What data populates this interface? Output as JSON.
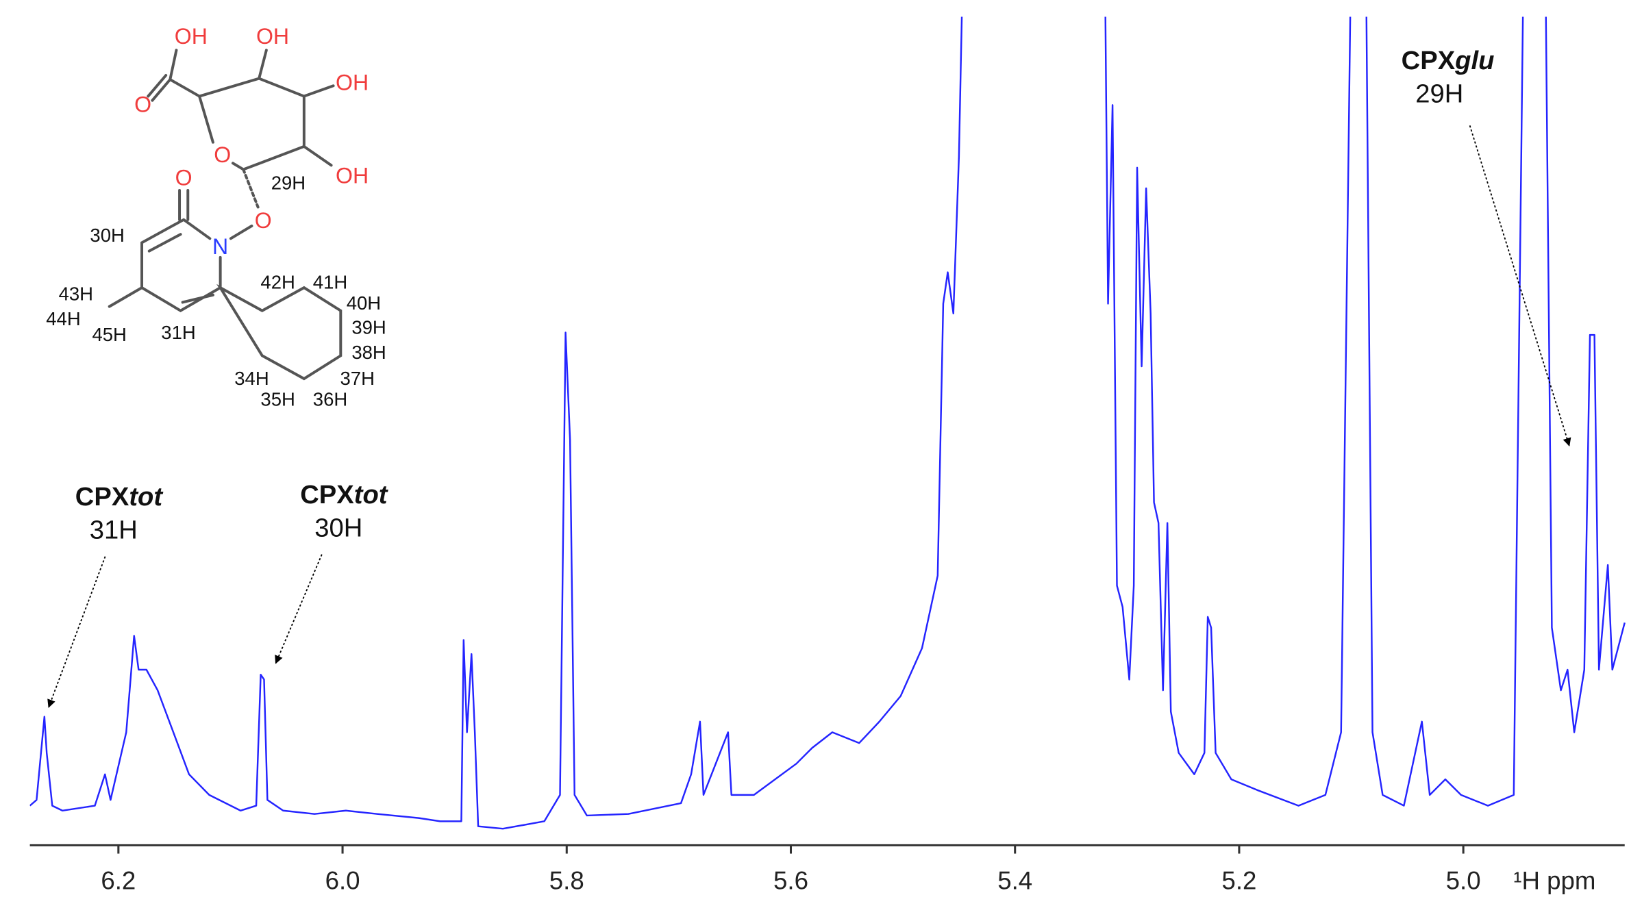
{
  "chart_data": {
    "type": "line",
    "x_label": "¹H ppm",
    "xlim": [
      6.279,
      4.856
    ],
    "xticks": [
      6.2,
      {
        "value": 6,
        "label": "6.0"
      },
      5.8,
      5.6,
      5.4,
      5.2,
      {
        "value": 5,
        "label": "5.0"
      }
    ],
    "ylim": [
      0,
      100
    ],
    "color": "#2424ff",
    "x": [
      6.279,
      6.273,
      6.266,
      6.264,
      6.259,
      6.25,
      6.221,
      6.212,
      6.207,
      6.193,
      6.186,
      6.182,
      6.175,
      6.165,
      6.151,
      6.137,
      6.119,
      6.091,
      6.077,
      6.073,
      6.07,
      6.067,
      6.053,
      6.025,
      5.997,
      5.969,
      5.932,
      5.913,
      5.894,
      5.892,
      5.889,
      5.885,
      5.882,
      5.879,
      5.857,
      5.82,
      5.806,
      5.801,
      5.797,
      5.793,
      5.782,
      5.745,
      5.698,
      5.689,
      5.681,
      5.678,
      5.656,
      5.653,
      5.633,
      5.595,
      5.581,
      5.563,
      5.539,
      5.521,
      5.502,
      5.483,
      5.469,
      5.464,
      5.46,
      5.455,
      5.45,
      5.446,
      5.32,
      5.317,
      5.313,
      5.309,
      5.304,
      5.298,
      5.294,
      5.291,
      5.287,
      5.283,
      5.279,
      5.276,
      5.272,
      5.268,
      5.264,
      5.261,
      5.254,
      5.24,
      5.231,
      5.228,
      5.225,
      5.221,
      5.207,
      5.184,
      5.147,
      5.123,
      5.109,
      5.1,
      5.087,
      5.081,
      5.072,
      5.053,
      5.037,
      5.03,
      5.016,
      5.002,
      4.978,
      4.955,
      4.946,
      4.927,
      4.921,
      4.913,
      4.907,
      4.901,
      4.892,
      4.887,
      4.883,
      4.879,
      4.871,
      4.867,
      4.856
    ],
    "values": [
      4.8,
      5.5,
      15.6,
      11.2,
      4.8,
      4.2,
      4.8,
      8.6,
      5.5,
      13.7,
      25.4,
      21.3,
      21.3,
      18.8,
      13.7,
      8.6,
      6.1,
      4.2,
      4.8,
      20.7,
      20.1,
      5.5,
      4.2,
      3.8,
      4.2,
      3.8,
      3.3,
      2.9,
      2.9,
      24.9,
      13.7,
      23.2,
      13.7,
      2.3,
      2.0,
      2.9,
      6.1,
      62.2,
      49.2,
      6.1,
      3.6,
      3.8,
      5.1,
      8.6,
      15.0,
      6.1,
      13.7,
      6.1,
      6.1,
      9.9,
      11.8,
      13.7,
      12.4,
      15.0,
      18.1,
      23.9,
      32.7,
      65.7,
      69.5,
      64.5,
      83.5,
      110,
      110,
      65.7,
      89.8,
      31.5,
      28.9,
      20.1,
      31.5,
      82.2,
      58.1,
      79.7,
      64.5,
      41.6,
      39.1,
      18.8,
      39.1,
      16.2,
      11.2,
      8.6,
      11.2,
      27.7,
      26.4,
      11.2,
      8.0,
      6.7,
      4.8,
      6.1,
      13.7,
      110,
      110,
      13.7,
      6.1,
      4.8,
      15.0,
      6.1,
      8.0,
      6.1,
      4.8,
      6.1,
      110,
      110,
      26.4,
      18.8,
      21.3,
      13.7,
      21.3,
      61.9,
      61.9,
      21.3,
      34.0,
      21.3,
      27.0
    ],
    "annotations": [
      {
        "text": "CPX",
        "emphasis": "tot",
        "atom": "31H"
      },
      {
        "text": "CPX",
        "emphasis": "tot",
        "atom": "30H"
      },
      {
        "text": "CPX",
        "emphasis": "glu",
        "atom": "29H"
      }
    ]
  },
  "molecule": {
    "atoms": [
      "OH",
      "O",
      "OH",
      "OH",
      "OH",
      "O",
      "O",
      "O",
      "N"
    ],
    "hydrogens": [
      "29H",
      "30H",
      "31H",
      "43H",
      "44H",
      "45H",
      "42H",
      "41H",
      "40H",
      "39H",
      "38H",
      "37H",
      "36H",
      "35H",
      "34H"
    ]
  }
}
